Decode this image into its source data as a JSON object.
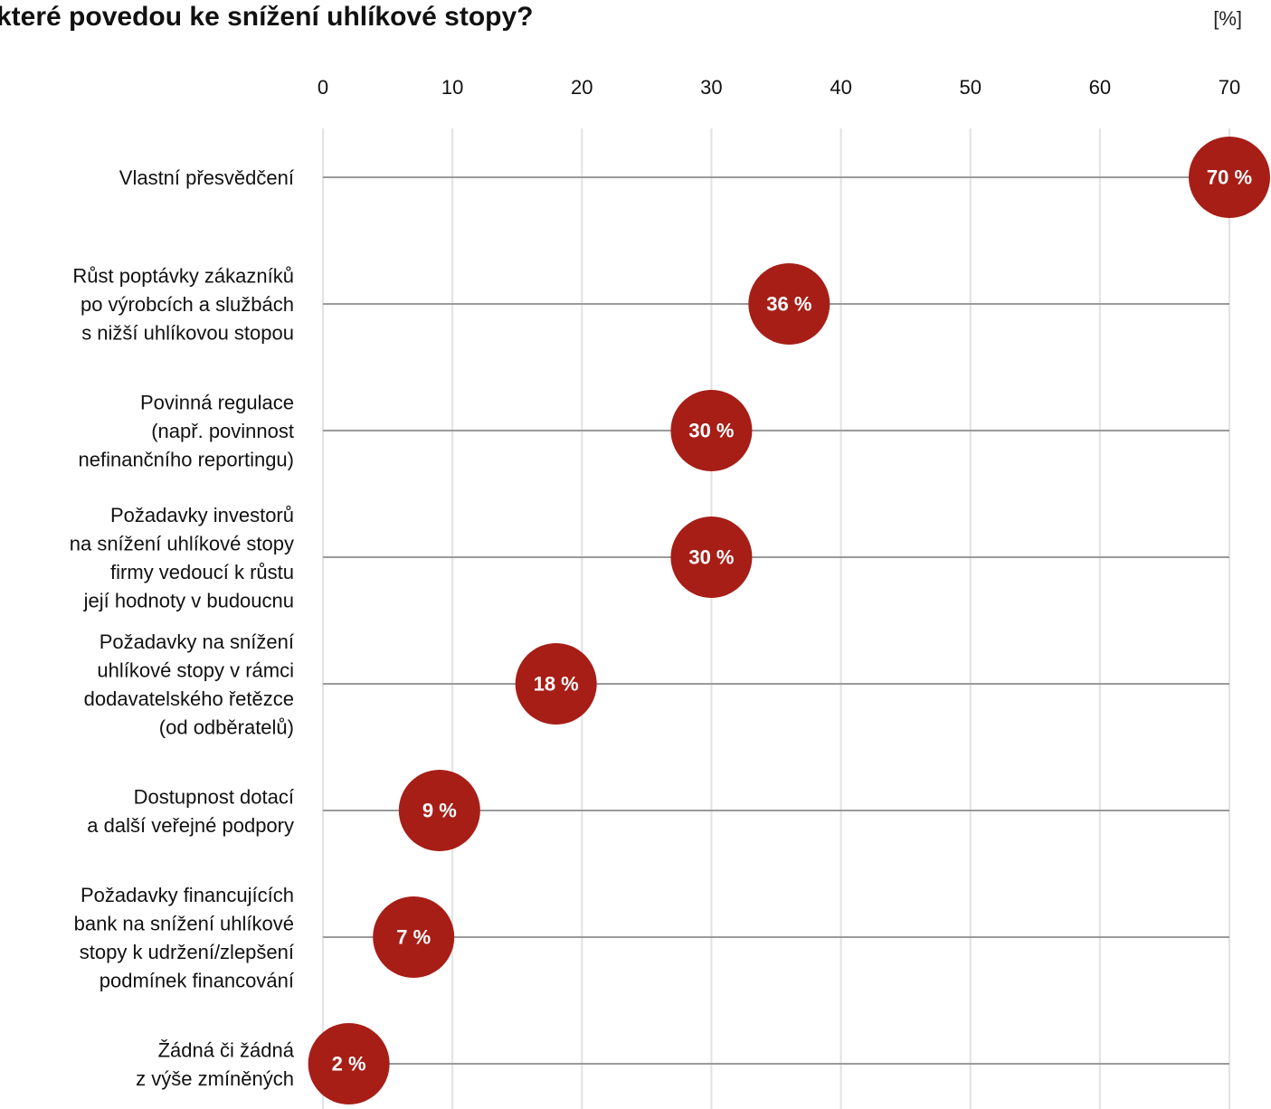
{
  "header": {
    "title": "které povedou ke snížení uhlíkové stopy?",
    "unit": "[%]"
  },
  "colors": {
    "marker": "#a71e17",
    "row_line": "#9a9a9a",
    "gridline": "#e2e2e2"
  },
  "chart_data": {
    "type": "scatter",
    "title": "které povedou ke snížení uhlíkové stopy?",
    "unit": "[%]",
    "xlim": [
      0,
      70
    ],
    "x_ticks": [
      "0",
      "10",
      "20",
      "30",
      "40",
      "50",
      "60",
      "70"
    ],
    "grid": true,
    "categories": [
      [
        "Vlastní přesvědčení"
      ],
      [
        "Růst poptávky zákazníků",
        "po výrobcích a službách",
        "s nižší uhlíkovou stopou"
      ],
      [
        "Povinná regulace",
        "(např. povinnost",
        "nefinančního reportingu)"
      ],
      [
        "Požadavky investorů",
        "na snížení uhlíkové stopy",
        "firmy vedoucí k růstu",
        "její hodnoty v budoucnu"
      ],
      [
        "Požadavky na snížení",
        "uhlíkové stopy v rámci",
        "dodavatelského řetězce",
        "(od odběratelů)"
      ],
      [
        "Dostupnost dotací",
        "a další veřejné podpory"
      ],
      [
        "Požadavky financujících",
        "bank na snížení uhlíkové",
        "stopy k udržení/zlepšení",
        "podmínek financování"
      ],
      [
        "Žádná či žádná",
        "z výše zmíněných"
      ]
    ],
    "values": [
      70,
      36,
      30,
      30,
      18,
      9,
      7,
      2
    ],
    "value_labels": [
      "70 %",
      "36 %",
      "30 %",
      "30 %",
      "18 %",
      "9 %",
      "7 %",
      "2 %"
    ]
  }
}
